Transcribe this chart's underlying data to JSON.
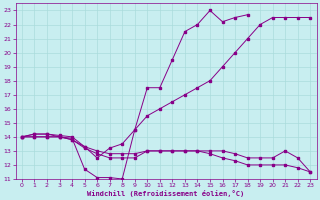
{
  "bg_color": "#c8eef0",
  "grid_color": "#aadcdc",
  "line_color": "#880088",
  "xlabel": "Windchill (Refroidissement éolien,°C)",
  "xlim": [
    -0.5,
    23.5
  ],
  "ylim": [
    11,
    23.5
  ],
  "xticks": [
    0,
    1,
    2,
    3,
    4,
    5,
    6,
    7,
    8,
    9,
    10,
    11,
    12,
    13,
    14,
    15,
    16,
    17,
    18,
    19,
    20,
    21,
    22,
    23
  ],
  "yticks": [
    11,
    12,
    13,
    14,
    15,
    16,
    17,
    18,
    19,
    20,
    21,
    22,
    23
  ],
  "series": [
    {
      "x": [
        0,
        1,
        2,
        3,
        4,
        5,
        6,
        7,
        8,
        9,
        10,
        11,
        12,
        13,
        14,
        15,
        16,
        17,
        18
      ],
      "y": [
        14.0,
        14.2,
        14.2,
        14.0,
        13.9,
        11.7,
        11.1,
        11.1,
        11.0,
        14.5,
        17.5,
        17.5,
        19.5,
        21.5,
        22.0,
        23.0,
        22.2,
        22.5,
        22.7
      ]
    },
    {
      "x": [
        0,
        1,
        2,
        3,
        4,
        5,
        6,
        7,
        8,
        9,
        10,
        11,
        12,
        13,
        14,
        15,
        16,
        17,
        18,
        19,
        20,
        21,
        22,
        23
      ],
      "y": [
        14.0,
        14.2,
        14.2,
        14.1,
        14.0,
        13.3,
        12.5,
        13.2,
        13.5,
        14.5,
        15.5,
        16.0,
        16.5,
        17.0,
        17.5,
        18.0,
        19.0,
        20.0,
        21.0,
        22.0,
        22.5,
        22.5,
        22.5,
        22.5
      ]
    },
    {
      "x": [
        0,
        1,
        2,
        3,
        4,
        5,
        6,
        7,
        8,
        9,
        10,
        11,
        12,
        13,
        14,
        15,
        16,
        17,
        18,
        19,
        20,
        21,
        22,
        23
      ],
      "y": [
        14.0,
        14.0,
        14.0,
        14.0,
        13.8,
        13.2,
        12.8,
        12.5,
        12.5,
        12.5,
        13.0,
        13.0,
        13.0,
        13.0,
        13.0,
        13.0,
        13.0,
        12.8,
        12.5,
        12.5,
        12.5,
        13.0,
        12.5,
        11.5
      ]
    },
    {
      "x": [
        0,
        1,
        2,
        3,
        4,
        5,
        6,
        7,
        8,
        9,
        10,
        11,
        12,
        13,
        14,
        15,
        16,
        17,
        18,
        19,
        20,
        21,
        22,
        23
      ],
      "y": [
        14.0,
        14.0,
        14.0,
        14.0,
        13.8,
        13.3,
        13.0,
        12.8,
        12.8,
        12.8,
        13.0,
        13.0,
        13.0,
        13.0,
        13.0,
        12.8,
        12.5,
        12.3,
        12.0,
        12.0,
        12.0,
        12.0,
        11.8,
        11.5
      ]
    }
  ]
}
